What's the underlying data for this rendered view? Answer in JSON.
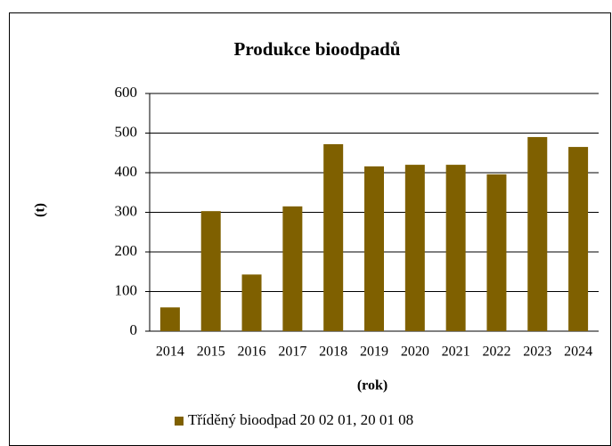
{
  "chart_data": {
    "type": "bar",
    "title": "Produkce bioodpadů",
    "y_label": "(t)",
    "x_label": "(rok)",
    "categories": [
      "2014",
      "2015",
      "2016",
      "2017",
      "2018",
      "2019",
      "2020",
      "2021",
      "2022",
      "2023",
      "2024"
    ],
    "series": [
      {
        "name": "Tříděný bioodpad 20 02 01, 20 01 08",
        "color": "#7f6000",
        "values": [
          60,
          303,
          143,
          315,
          472,
          416,
          420,
          420,
          396,
          490,
          465
        ]
      }
    ],
    "ylim": [
      0,
      600
    ],
    "yticks": [
      0,
      100,
      200,
      300,
      400,
      500,
      600
    ],
    "grid": true,
    "legend": "bottom"
  }
}
